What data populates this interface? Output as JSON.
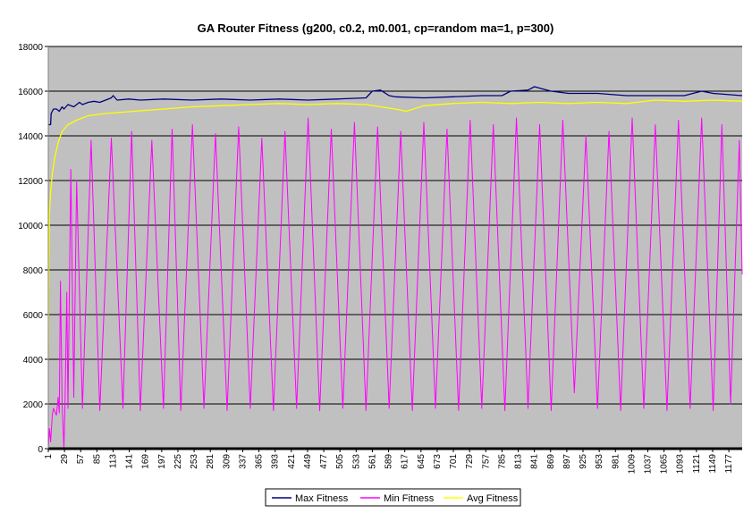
{
  "chart_data": {
    "type": "line",
    "title": "GA Router Fitness (g200, c0.2, m0.001, cp=random ma=1, p=300)",
    "xlabel": "",
    "ylabel": "",
    "x_range": [
      1,
      1200
    ],
    "ylim": [
      0,
      18000
    ],
    "y_ticks": [
      0,
      2000,
      4000,
      6000,
      8000,
      10000,
      12000,
      14000,
      16000,
      18000
    ],
    "x_tick_labels": [
      1,
      29,
      57,
      85,
      113,
      141,
      169,
      197,
      225,
      253,
      281,
      309,
      337,
      365,
      393,
      421,
      449,
      477,
      505,
      533,
      561,
      589,
      617,
      645,
      673,
      701,
      729,
      757,
      785,
      813,
      841,
      869,
      897,
      925,
      953,
      981,
      1009,
      1037,
      1065,
      1093,
      1121,
      1149,
      1177
    ],
    "grid": "horizontal",
    "plot_background": "#c0c0c0",
    "legend_position": "bottom",
    "series": [
      {
        "name": "Max Fitness",
        "color": "#000080",
        "x": [
          1,
          5,
          6,
          10,
          15,
          20,
          25,
          28,
          35,
          45,
          55,
          60,
          70,
          80,
          90,
          100,
          110,
          113,
          120,
          140,
          160,
          200,
          250,
          300,
          350,
          400,
          450,
          500,
          550,
          561,
          575,
          590,
          600,
          650,
          700,
          750,
          785,
          800,
          830,
          841,
          855,
          870,
          900,
          950,
          1000,
          1050,
          1100,
          1130,
          1150,
          1200
        ],
        "values": [
          14500,
          14500,
          15000,
          15200,
          15200,
          15100,
          15300,
          15200,
          15400,
          15300,
          15500,
          15400,
          15500,
          15550,
          15500,
          15600,
          15700,
          15800,
          15600,
          15650,
          15600,
          15650,
          15600,
          15650,
          15600,
          15650,
          15600,
          15650,
          15700,
          16000,
          16050,
          15800,
          15750,
          15700,
          15750,
          15800,
          15800,
          16000,
          16050,
          16200,
          16100,
          16000,
          15900,
          15900,
          15800,
          15800,
          15800,
          16000,
          15900,
          15800
        ]
      },
      {
        "name": "Min Fitness",
        "color": "#ff00ff",
        "x": [
          1,
          3,
          5,
          8,
          10,
          15,
          18,
          20,
          22,
          25,
          28,
          30,
          33,
          35,
          40,
          45,
          50,
          60,
          75,
          90,
          110,
          130,
          145,
          160,
          180,
          200,
          215,
          230,
          250,
          270,
          290,
          310,
          330,
          350,
          370,
          390,
          410,
          430,
          450,
          470,
          490,
          510,
          530,
          550,
          570,
          590,
          610,
          630,
          650,
          670,
          690,
          710,
          730,
          750,
          770,
          790,
          810,
          830,
          850,
          870,
          890,
          910,
          930,
          950,
          970,
          990,
          1010,
          1030,
          1050,
          1070,
          1090,
          1110,
          1130,
          1150,
          1165,
          1180,
          1195,
          1200
        ],
        "values": [
          0,
          900,
          300,
          1500,
          1800,
          1500,
          2300,
          1600,
          7500,
          2000,
          0,
          2200,
          7000,
          1800,
          12500,
          2300,
          12000,
          1800,
          13800,
          1700,
          13900,
          1800,
          14200,
          1700,
          13800,
          1800,
          14300,
          1700,
          14500,
          1800,
          14100,
          1700,
          14400,
          1800,
          13900,
          1700,
          14200,
          1800,
          14800,
          1700,
          14300,
          1800,
          14600,
          1700,
          14400,
          1800,
          14200,
          1700,
          14600,
          1800,
          14300,
          1700,
          14700,
          1800,
          14500,
          1700,
          14800,
          1800,
          14500,
          1700,
          14700,
          2500,
          14000,
          1800,
          14200,
          1700,
          14800,
          1800,
          14500,
          1700,
          14700,
          1800,
          14800,
          1700,
          14500,
          2000,
          13800,
          7800
        ]
      },
      {
        "name": "Avg Fitness",
        "color": "#ffff00",
        "x": [
          1,
          2,
          3,
          5,
          8,
          12,
          18,
          25,
          35,
          50,
          70,
          100,
          150,
          200,
          250,
          300,
          350,
          400,
          450,
          500,
          550,
          600,
          620,
          650,
          700,
          750,
          800,
          850,
          900,
          950,
          1000,
          1050,
          1100,
          1150,
          1200
        ],
        "values": [
          4000,
          8000,
          10500,
          11500,
          12300,
          13000,
          13700,
          14200,
          14500,
          14700,
          14900,
          15000,
          15100,
          15200,
          15300,
          15350,
          15400,
          15450,
          15400,
          15450,
          15400,
          15200,
          15100,
          15350,
          15450,
          15500,
          15450,
          15500,
          15450,
          15500,
          15450,
          15600,
          15550,
          15600,
          15550
        ]
      }
    ]
  }
}
